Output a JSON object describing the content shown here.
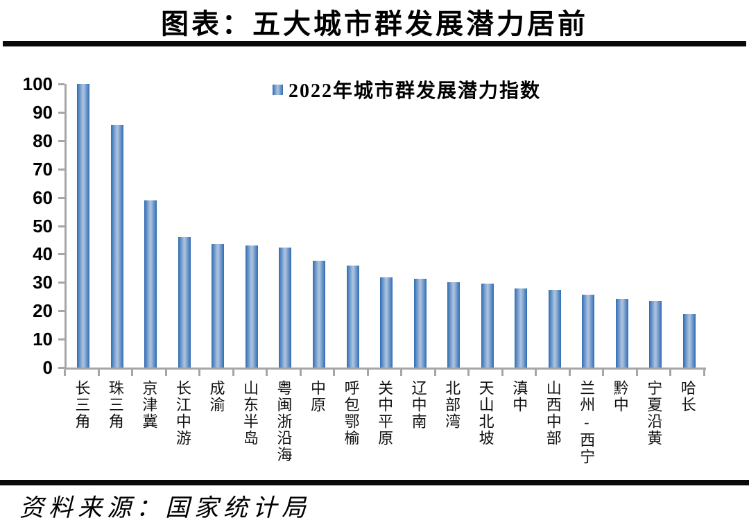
{
  "page": {
    "title": "图表：五大城市群发展潜力居前",
    "source_note": "资料来源：国家统计局"
  },
  "chart_data": {
    "type": "bar",
    "title": "图表：五大城市群发展潜力居前",
    "legend": "2022年城市群发展潜力指数",
    "legend_position": "top-center",
    "grid": false,
    "ylim": [
      0,
      100
    ],
    "y_ticks": [
      0,
      10,
      20,
      30,
      40,
      50,
      60,
      70,
      80,
      90,
      100
    ],
    "xlabel": "",
    "ylabel": "",
    "categories": [
      "长三角",
      "珠三角",
      "京津冀",
      "长江中游",
      "成渝",
      "山东半岛",
      "粤闽浙沿海",
      "中原",
      "呼包鄂榆",
      "关中平原",
      "辽中南",
      "北部湾",
      "天山北坡",
      "滇中",
      "山西中部",
      "兰州-西宁",
      "黔中",
      "宁夏沿黄",
      "哈长"
    ],
    "values": [
      100,
      85.5,
      59,
      46,
      43.6,
      43.1,
      42.4,
      37.6,
      36,
      31.8,
      31.4,
      30.2,
      29.6,
      27.8,
      27.3,
      25.6,
      24.2,
      23.4,
      18.9
    ],
    "colors": {
      "bar_edge": "#2e6bb0",
      "bar_mid": "#5486c2",
      "bar_center": "#a9c0dd",
      "axis": "#a6a6a6",
      "text": "#000000",
      "divider": "#0a0a0a"
    }
  }
}
